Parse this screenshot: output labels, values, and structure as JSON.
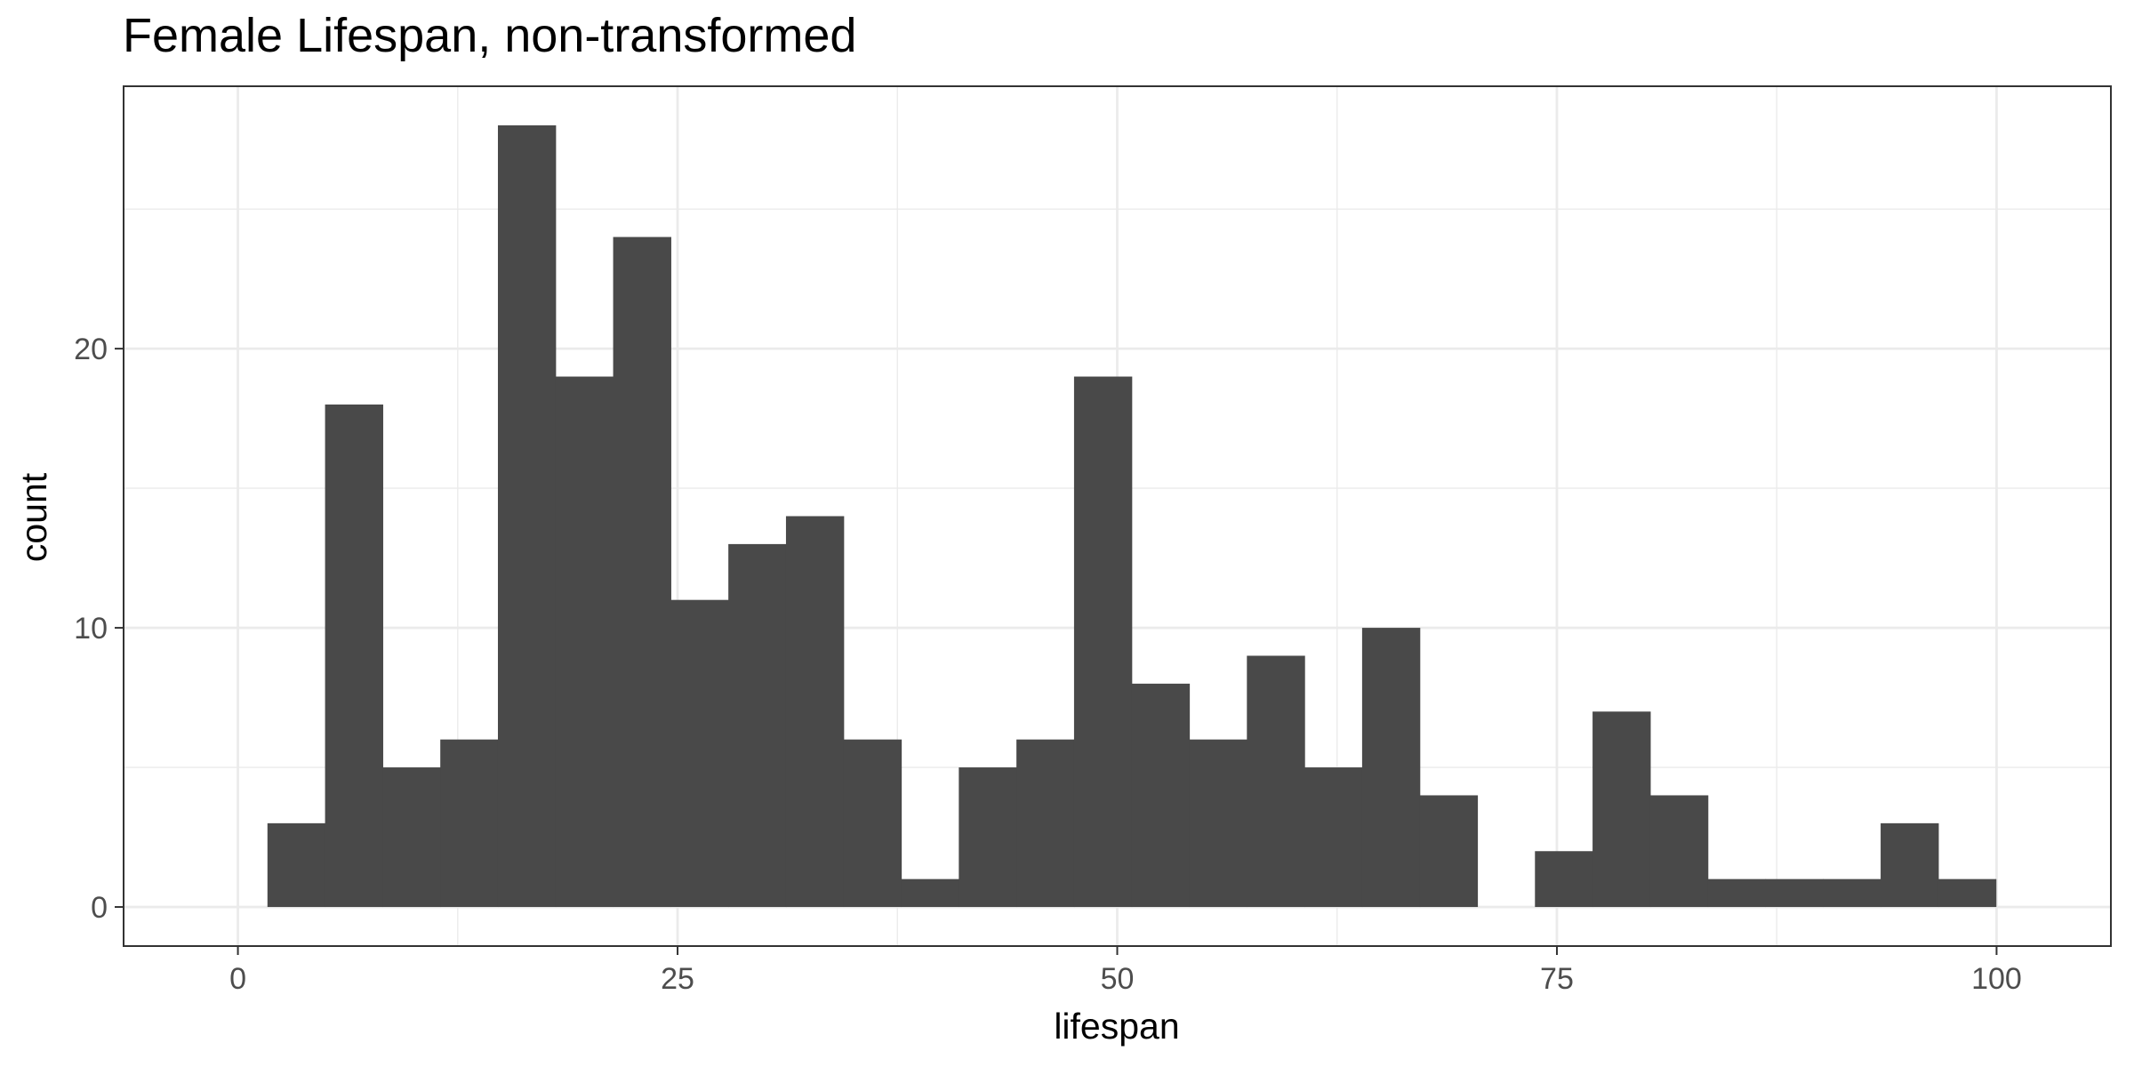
{
  "chart_data": {
    "type": "bar",
    "title": "Female Lifespan, non-transformed",
    "xlabel": "lifespan",
    "ylabel": "count",
    "xlim": [
      -6.5,
      106.5
    ],
    "ylim": [
      -1.4,
      29.4
    ],
    "x_ticks": [
      0,
      25,
      50,
      75,
      100
    ],
    "x_tick_labels": [
      "0",
      "25",
      "50",
      "75",
      "100"
    ],
    "y_ticks": [
      0,
      10,
      20
    ],
    "y_tick_labels": [
      "0",
      "10",
      "20"
    ],
    "x_minor_gridlines": [
      12.5,
      37.5,
      62.5,
      87.5
    ],
    "y_minor_gridlines": [
      5,
      15,
      25
    ],
    "grid": true,
    "bar_color": "#494949",
    "bins": {
      "start": 1.68,
      "width": 3.276,
      "counts": [
        3,
        18,
        5,
        6,
        28,
        19,
        24,
        11,
        13,
        14,
        6,
        1,
        5,
        6,
        19,
        8,
        6,
        9,
        5,
        10,
        4,
        0,
        2,
        7,
        4,
        1,
        1,
        1,
        3,
        1
      ]
    }
  }
}
